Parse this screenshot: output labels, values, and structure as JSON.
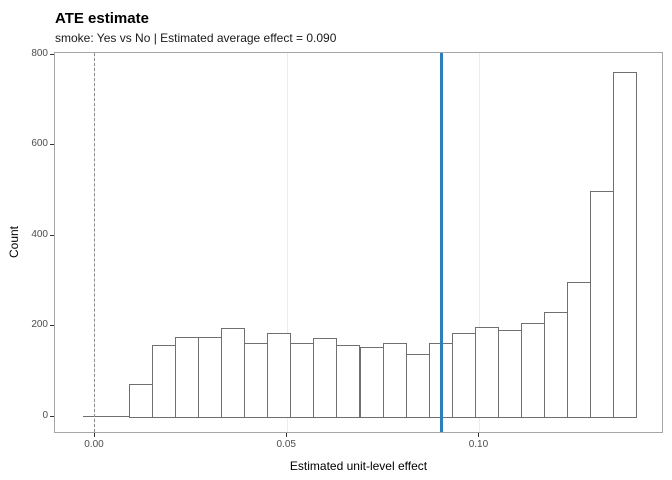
{
  "header": {
    "title": "ATE estimate",
    "subtitle": "smoke: Yes vs No | Estimated average effect = 0.090"
  },
  "chart_data": {
    "type": "bar",
    "subtype": "histogram",
    "title": "ATE estimate",
    "subtitle": "smoke: Yes vs No | Estimated average effect = 0.090",
    "xlabel": "Estimated unit-level effect",
    "ylabel": "Count",
    "xlim": [
      -0.0104,
      0.148
    ],
    "ylim": [
      -38.3,
      804.3
    ],
    "x_tick_values": [
      0.0,
      0.05,
      0.1
    ],
    "x_tick_labels": [
      "0.00",
      "0.05",
      "0.10"
    ],
    "y_tick_values": [
      0,
      200,
      400,
      600,
      800
    ],
    "y_tick_labels": [
      "0",
      "200",
      "400",
      "600",
      "800"
    ],
    "gridlines_x": [
      0.0,
      0.05,
      0.1
    ],
    "grid": "vertical-major-only",
    "legend": "none",
    "bin_start": -0.0032,
    "bin_width": 0.006,
    "counts": [
      0,
      0,
      73,
      159,
      176,
      176,
      197,
      164,
      185,
      162,
      175,
      159,
      153,
      162,
      139,
      163,
      186,
      198,
      191,
      208,
      231,
      298,
      500,
      763
    ],
    "bar_fill": "#ffffff",
    "bar_border": "#6f6f6f",
    "vlines": [
      {
        "x": 0.0,
        "style": "dashed",
        "color": "#8c8c8c",
        "width": 1,
        "meaning": "zero effect reference"
      },
      {
        "x": 0.09,
        "style": "solid",
        "color": "#2e7ebc",
        "width": 3,
        "meaning": "estimated average effect"
      }
    ]
  }
}
